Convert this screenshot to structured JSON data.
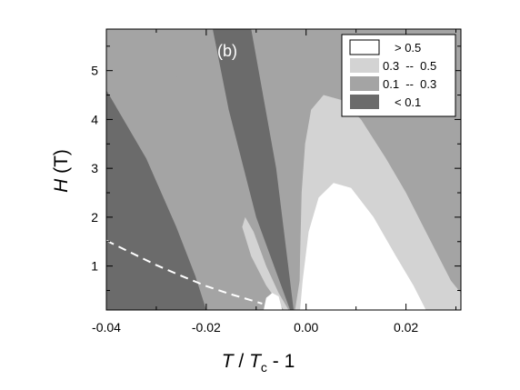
{
  "chart_data": {
    "type": "contour",
    "panel_label": "(b)",
    "xlabel": {
      "italic_a": "T",
      "sep": " / ",
      "italic_b": "T",
      "sub": "c",
      "tail": " - 1"
    },
    "ylabel": {
      "italic": "H",
      "tail": " (T)"
    },
    "xlim": [
      -0.04,
      0.031
    ],
    "ylim": [
      0.1,
      5.85
    ],
    "x_ticks": [
      {
        "value": -0.04,
        "label": "-0.04"
      },
      {
        "value": -0.02,
        "label": "-0.02"
      },
      {
        "value": 0.0,
        "label": "0.00"
      },
      {
        "value": 0.02,
        "label": "0.02"
      }
    ],
    "y_ticks": [
      {
        "value": 1,
        "label": "1"
      },
      {
        "value": 2,
        "label": "2"
      },
      {
        "value": 3,
        "label": "3"
      },
      {
        "value": 4,
        "label": "4"
      },
      {
        "value": 5,
        "label": "5"
      }
    ],
    "legend": {
      "position": "top-right",
      "entries": [
        {
          "label": "> 0.5",
          "color": "#ffffff"
        },
        {
          "label": "0.3  --  0.5",
          "color": "#d3d3d3"
        },
        {
          "label": "0.1  --  0.3",
          "color": "#a4a4a4"
        },
        {
          "label": "< 0.1",
          "color": "#6b6b6b"
        }
      ]
    },
    "colors": {
      "lt01": "#6b6b6b",
      "b01_03": "#a4a4a4",
      "b03_05": "#d3d3d3",
      "gt05": "#ffffff"
    },
    "regions": [
      {
        "level": "0.1 -- 0.3",
        "color_key": "b01_03",
        "points": [
          [
            -0.04,
            5.85
          ],
          [
            -0.0308,
            5.85
          ],
          [
            -0.0164,
            3.0
          ],
          [
            -0.0085,
            1.2
          ],
          [
            -0.0032,
            0.1
          ],
          [
            -0.04,
            0.1
          ]
        ]
      },
      {
        "level": "< 0.1",
        "color_key": "lt01",
        "points": [
          [
            -0.04,
            4.6
          ],
          [
            -0.032,
            3.2
          ],
          [
            -0.026,
            1.8
          ],
          [
            -0.0222,
            0.8
          ],
          [
            -0.02,
            0.1
          ],
          [
            -0.04,
            0.1
          ]
        ]
      },
      {
        "level": "< 0.1",
        "color_key": "lt01",
        "points": [
          [
            -0.0187,
            5.85
          ],
          [
            -0.011,
            5.85
          ],
          [
            -0.006,
            3.0
          ],
          [
            -0.0025,
            0.1
          ],
          [
            -0.0032,
            0.1
          ],
          [
            -0.01,
            2.0
          ],
          [
            -0.0155,
            4.2
          ]
        ]
      },
      {
        "level": "0.1 -- 0.3",
        "color_key": "b01_03",
        "points": [
          [
            -0.001,
            0.1
          ],
          [
            0.0005,
            1.0
          ],
          [
            0.003,
            2.5
          ],
          [
            0.011,
            4.2
          ],
          [
            0.02,
            5.4
          ],
          [
            0.024,
            5.85
          ],
          [
            0.031,
            5.85
          ],
          [
            0.031,
            0.1
          ]
        ]
      },
      {
        "level": "0.3 -- 0.5",
        "color_key": "b03_05",
        "points": [
          [
            -0.0022,
            0.1
          ],
          [
            -0.0013,
            0.7
          ],
          [
            -0.0012,
            1.2
          ],
          [
            -0.0009,
            2.5
          ],
          [
            -0.0002,
            3.5
          ],
          [
            0.001,
            4.2
          ],
          [
            0.0035,
            4.5
          ],
          [
            0.007,
            4.4
          ],
          [
            0.011,
            4.0
          ],
          [
            0.016,
            3.2
          ],
          [
            0.02,
            2.5
          ],
          [
            0.025,
            1.5
          ],
          [
            0.029,
            0.7
          ],
          [
            0.031,
            0.45
          ],
          [
            0.031,
            0.1
          ]
        ]
      },
      {
        "level": "0.3 -- 0.5",
        "color_key": "b03_05",
        "points": [
          [
            -0.0045,
            0.1
          ],
          [
            -0.008,
            0.6
          ],
          [
            -0.011,
            1.2
          ],
          [
            -0.0128,
            1.8
          ],
          [
            -0.0122,
            2.0
          ],
          [
            -0.0105,
            1.7
          ],
          [
            -0.008,
            1.0
          ],
          [
            -0.0055,
            0.45
          ],
          [
            -0.0035,
            0.1
          ]
        ]
      },
      {
        "level": "> 0.5",
        "color_key": "gt05",
        "points": [
          [
            -0.0012,
            0.1
          ],
          [
            -0.0007,
            0.7
          ],
          [
            0.0005,
            1.7
          ],
          [
            0.0025,
            2.4
          ],
          [
            0.0055,
            2.7
          ],
          [
            0.009,
            2.6
          ],
          [
            0.0135,
            2.0
          ],
          [
            0.018,
            1.2
          ],
          [
            0.0215,
            0.6
          ],
          [
            0.024,
            0.1
          ]
        ]
      },
      {
        "level": "> 0.5",
        "color_key": "gt05",
        "points": [
          [
            -0.0085,
            0.1
          ],
          [
            -0.008,
            0.35
          ],
          [
            -0.0068,
            0.45
          ],
          [
            -0.0055,
            0.38
          ],
          [
            -0.0048,
            0.1
          ]
        ]
      }
    ],
    "dashed_line": {
      "color": "#ffffff",
      "points": [
        [
          -0.04,
          1.52
        ],
        [
          -0.035,
          1.27
        ],
        [
          -0.03,
          1.02
        ],
        [
          -0.025,
          0.8
        ],
        [
          -0.02,
          0.59
        ],
        [
          -0.015,
          0.42
        ],
        [
          -0.011,
          0.3
        ],
        [
          -0.0088,
          0.23
        ]
      ]
    }
  }
}
